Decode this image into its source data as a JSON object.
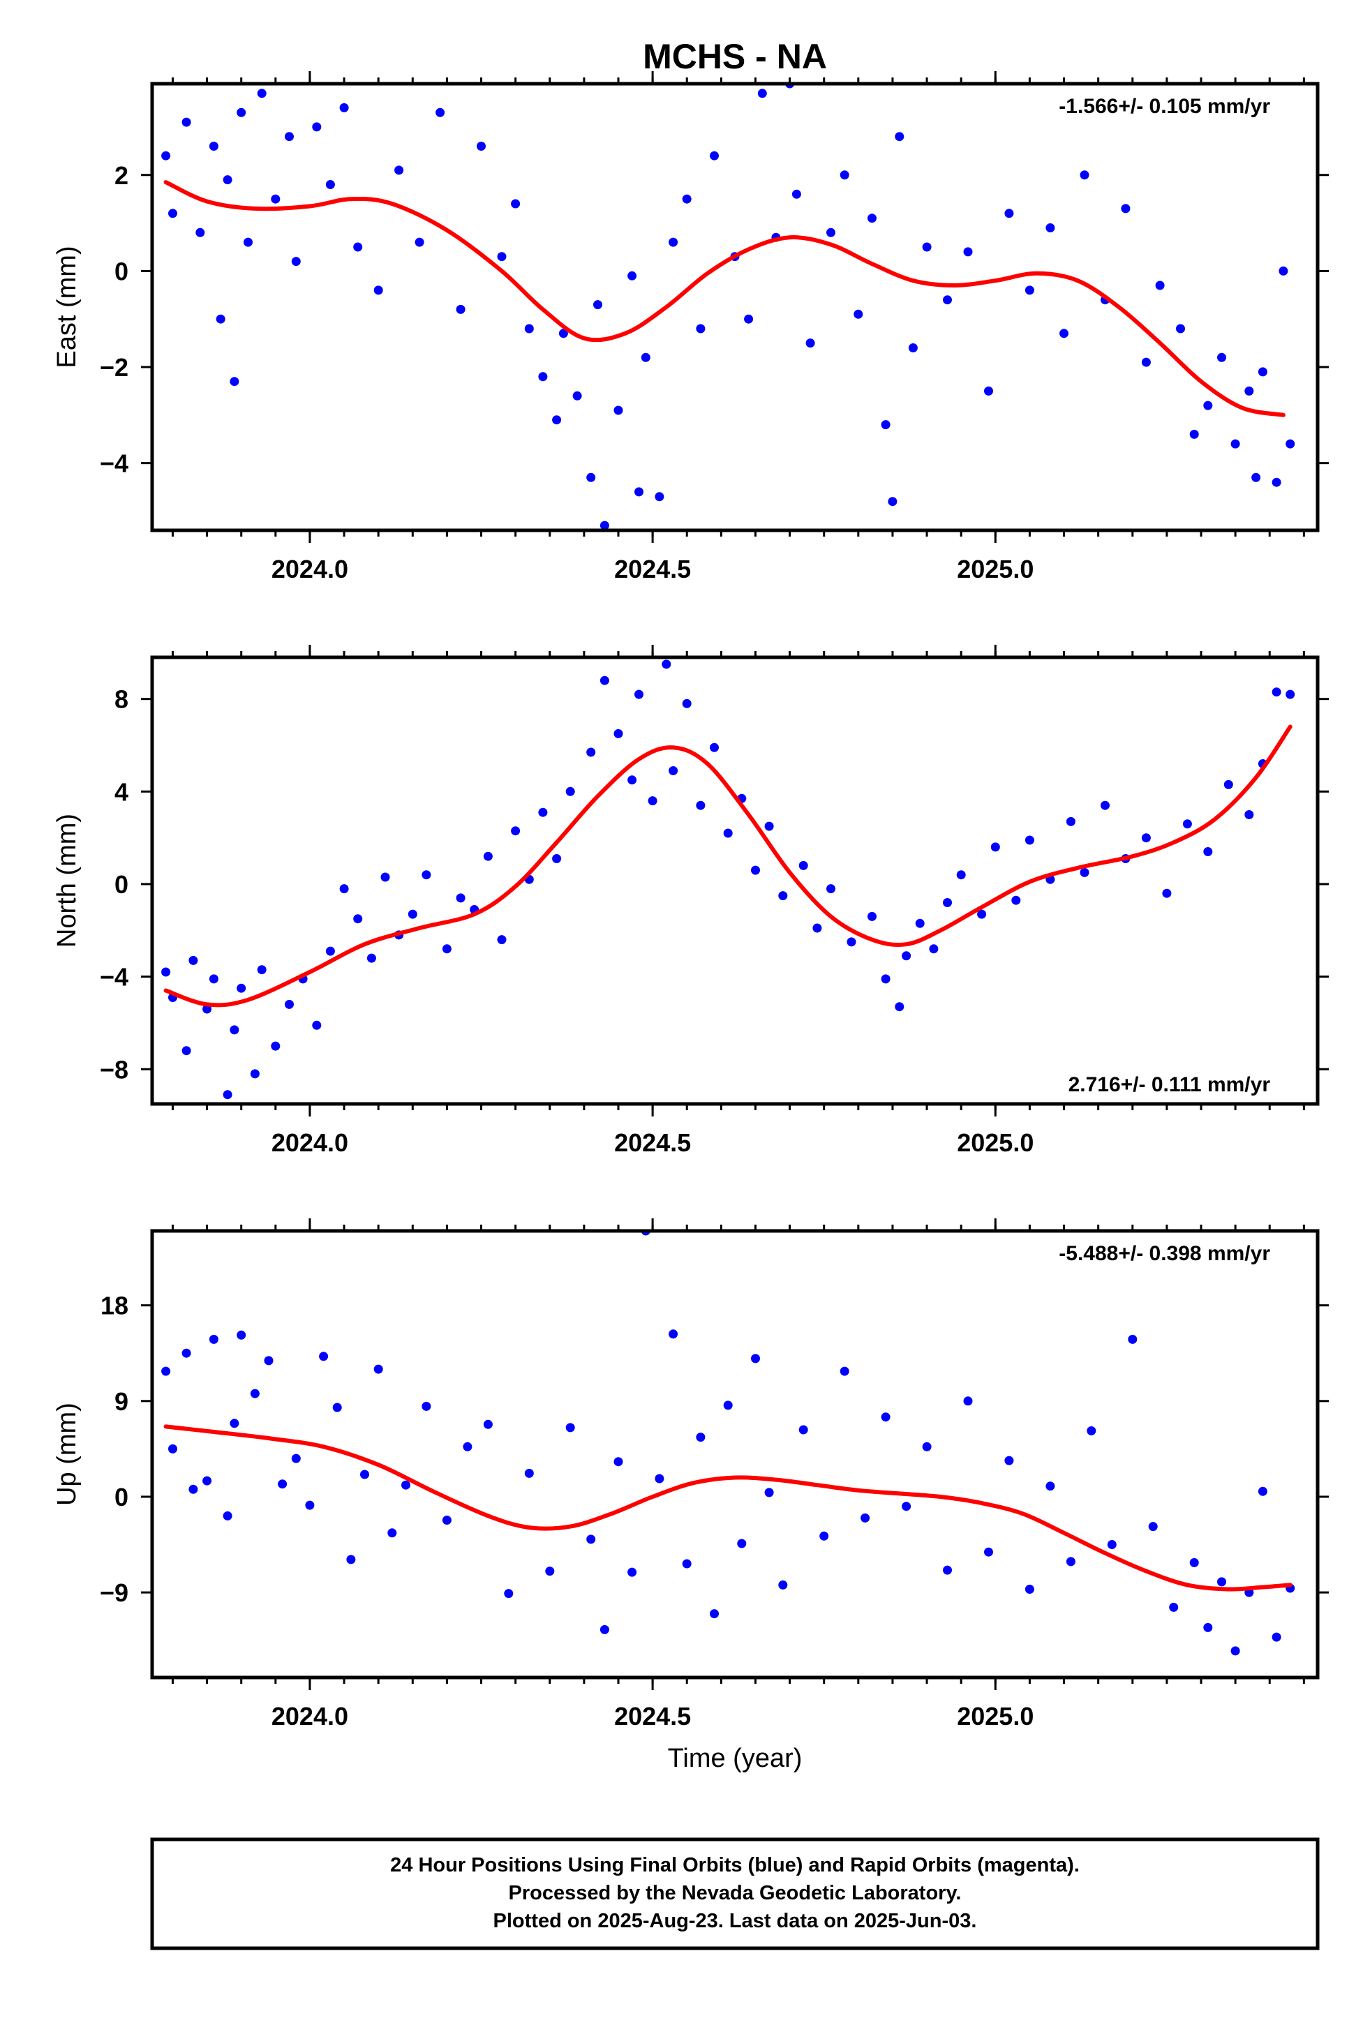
{
  "title": "MCHS - NA",
  "x_axis_label": "Time (year)",
  "footer": {
    "line1": "24 Hour Positions Using Final Orbits (blue) and Rapid Orbits (magenta).",
    "line2": "Processed by the Nevada Geodetic Laboratory.",
    "line3": "Plotted on 2025-Aug-23. Last data on 2025-Jun-03."
  },
  "colors": {
    "points": "#0000ff",
    "fit": "#ff0000",
    "frame": "#000000"
  },
  "chart_data": [
    {
      "type": "scatter",
      "ylabel": "East (mm)",
      "rate_label": "-1.566+/- 0.105 mm/yr",
      "rate_position": "top-right",
      "xlim": [
        2023.77,
        2025.47
      ],
      "ylim": [
        -5.4,
        3.9
      ],
      "xticks": [
        2024.0,
        2024.5,
        2025.0
      ],
      "xtick_labels": [
        "2024.0",
        "2024.5",
        "2025.0"
      ],
      "yticks": [
        -4,
        -2,
        0,
        2
      ],
      "ytick_labels": [
        "−4",
        "−2",
        "0",
        "2"
      ],
      "fit_curve": {
        "x": [
          2023.79,
          2023.85,
          2023.92,
          2024.0,
          2024.06,
          2024.12,
          2024.2,
          2024.28,
          2024.34,
          2024.4,
          2024.46,
          2024.52,
          2024.58,
          2024.64,
          2024.7,
          2024.76,
          2024.82,
          2024.88,
          2024.94,
          2025.0,
          2025.06,
          2025.12,
          2025.18,
          2025.24,
          2025.3,
          2025.36,
          2025.42
        ],
        "y": [
          1.85,
          1.45,
          1.3,
          1.35,
          1.5,
          1.4,
          0.85,
          0.0,
          -0.8,
          -1.4,
          -1.3,
          -0.75,
          -0.05,
          0.45,
          0.7,
          0.55,
          0.15,
          -0.2,
          -0.3,
          -0.2,
          -0.05,
          -0.2,
          -0.75,
          -1.5,
          -2.3,
          -2.85,
          -3.0
        ]
      },
      "points": {
        "x": [
          2023.79,
          2023.8,
          2023.82,
          2023.84,
          2023.86,
          2023.87,
          2023.88,
          2023.89,
          2023.9,
          2023.91,
          2023.93,
          2023.95,
          2023.97,
          2023.98,
          2024.01,
          2024.03,
          2024.05,
          2024.07,
          2024.1,
          2024.13,
          2024.16,
          2024.19,
          2024.22,
          2024.25,
          2024.28,
          2024.3,
          2024.32,
          2024.34,
          2024.36,
          2024.37,
          2024.39,
          2024.41,
          2024.42,
          2024.43,
          2024.45,
          2024.47,
          2024.48,
          2024.49,
          2024.51,
          2024.53,
          2024.55,
          2024.57,
          2024.59,
          2024.62,
          2024.64,
          2024.66,
          2024.68,
          2024.7,
          2024.71,
          2024.73,
          2024.76,
          2024.78,
          2024.8,
          2024.82,
          2024.84,
          2024.85,
          2024.86,
          2024.88,
          2024.9,
          2024.93,
          2024.96,
          2024.99,
          2025.02,
          2025.05,
          2025.08,
          2025.1,
          2025.13,
          2025.16,
          2025.19,
          2025.22,
          2025.24,
          2025.27,
          2025.29,
          2025.31,
          2025.33,
          2025.35,
          2025.37,
          2025.38,
          2025.39,
          2025.41,
          2025.42,
          2025.43
        ],
        "y": [
          2.4,
          1.2,
          3.1,
          0.8,
          2.6,
          -1.0,
          1.9,
          -2.3,
          3.3,
          0.6,
          3.7,
          1.5,
          2.8,
          0.2,
          3.0,
          1.8,
          3.4,
          0.5,
          -0.4,
          2.1,
          0.6,
          3.3,
          -0.8,
          2.6,
          0.3,
          1.4,
          -1.2,
          -2.2,
          -3.1,
          -1.3,
          -2.6,
          -4.3,
          -0.7,
          -5.3,
          -2.9,
          -0.1,
          -4.6,
          -1.8,
          -4.7,
          0.6,
          1.5,
          -1.2,
          2.4,
          0.3,
          -1.0,
          3.7,
          0.7,
          3.9,
          1.6,
          -1.5,
          0.8,
          2.0,
          -0.9,
          1.1,
          -3.2,
          -4.8,
          2.8,
          -1.6,
          0.5,
          -0.6,
          0.4,
          -2.5,
          1.2,
          -0.4,
          0.9,
          -1.3,
          2.0,
          -0.6,
          1.3,
          -1.9,
          -0.3,
          -1.2,
          -3.4,
          -2.8,
          -1.8,
          -3.6,
          -2.5,
          -4.3,
          -2.1,
          -4.4,
          0.0,
          -3.6
        ]
      }
    },
    {
      "type": "scatter",
      "ylabel": "North (mm)",
      "rate_label": "2.716+/- 0.111 mm/yr",
      "rate_position": "bottom-right",
      "xlim": [
        2023.77,
        2025.47
      ],
      "ylim": [
        -9.5,
        9.8
      ],
      "xticks": [
        2024.0,
        2024.5,
        2025.0
      ],
      "xtick_labels": [
        "2024.0",
        "2024.5",
        "2025.0"
      ],
      "yticks": [
        -8,
        -4,
        0,
        4,
        8
      ],
      "ytick_labels": [
        "−8",
        "−4",
        "0",
        "4",
        "8"
      ],
      "fit_curve": {
        "x": [
          2023.79,
          2023.85,
          2023.91,
          2024.0,
          2024.08,
          2024.16,
          2024.24,
          2024.3,
          2024.36,
          2024.42,
          2024.48,
          2024.53,
          2024.58,
          2024.64,
          2024.7,
          2024.76,
          2024.82,
          2024.87,
          2024.92,
          2024.98,
          2025.05,
          2025.12,
          2025.2,
          2025.26,
          2025.32,
          2025.38,
          2025.43
        ],
        "y": [
          -4.6,
          -5.2,
          -5.0,
          -3.8,
          -2.6,
          -1.9,
          -1.3,
          -0.1,
          1.8,
          3.8,
          5.4,
          5.9,
          5.2,
          3.0,
          0.5,
          -1.4,
          -2.4,
          -2.6,
          -2.0,
          -1.0,
          0.1,
          0.7,
          1.2,
          1.8,
          2.8,
          4.6,
          6.8
        ]
      },
      "points": {
        "x": [
          2023.79,
          2023.8,
          2023.82,
          2023.83,
          2023.85,
          2023.86,
          2023.88,
          2023.89,
          2023.9,
          2023.92,
          2023.93,
          2023.95,
          2023.97,
          2023.99,
          2024.01,
          2024.03,
          2024.05,
          2024.07,
          2024.09,
          2024.11,
          2024.13,
          2024.15,
          2024.17,
          2024.2,
          2024.22,
          2024.24,
          2024.26,
          2024.28,
          2024.3,
          2024.32,
          2024.34,
          2024.36,
          2024.38,
          2024.41,
          2024.43,
          2024.45,
          2024.47,
          2024.48,
          2024.5,
          2024.52,
          2024.53,
          2024.55,
          2024.57,
          2024.59,
          2024.61,
          2024.63,
          2024.65,
          2024.67,
          2024.69,
          2024.72,
          2024.74,
          2024.76,
          2024.79,
          2024.82,
          2024.84,
          2024.86,
          2024.87,
          2024.89,
          2024.91,
          2024.93,
          2024.95,
          2024.98,
          2025.0,
          2025.03,
          2025.05,
          2025.08,
          2025.11,
          2025.13,
          2025.16,
          2025.19,
          2025.22,
          2025.25,
          2025.28,
          2025.31,
          2025.34,
          2025.37,
          2025.39,
          2025.41,
          2025.43
        ],
        "y": [
          -3.8,
          -4.9,
          -7.2,
          -3.3,
          -5.4,
          -4.1,
          -9.1,
          -6.3,
          -4.5,
          -8.2,
          -3.7,
          -7.0,
          -5.2,
          -4.1,
          -6.1,
          -2.9,
          -0.2,
          -1.5,
          -3.2,
          0.3,
          -2.2,
          -1.3,
          0.4,
          -2.8,
          -0.6,
          -1.1,
          1.2,
          -2.4,
          2.3,
          0.2,
          3.1,
          1.1,
          4.0,
          5.7,
          8.8,
          6.5,
          4.5,
          8.2,
          3.6,
          9.5,
          4.9,
          7.8,
          3.4,
          5.9,
          2.2,
          3.7,
          0.6,
          2.5,
          -0.5,
          0.8,
          -1.9,
          -0.2,
          -2.5,
          -1.4,
          -4.1,
          -5.3,
          -3.1,
          -1.7,
          -2.8,
          -0.8,
          0.4,
          -1.3,
          1.6,
          -0.7,
          1.9,
          0.2,
          2.7,
          0.5,
          3.4,
          1.1,
          2.0,
          -0.4,
          2.6,
          1.4,
          4.3,
          3.0,
          5.2,
          8.3,
          8.2
        ]
      }
    },
    {
      "type": "scatter",
      "ylabel": "Up (mm)",
      "rate_label": "-5.488+/- 0.398 mm/yr",
      "rate_position": "top-right",
      "xlim": [
        2023.77,
        2025.47
      ],
      "ylim": [
        -17.0,
        25.0
      ],
      "xticks": [
        2024.0,
        2024.5,
        2025.0
      ],
      "xtick_labels": [
        "2024.0",
        "2024.5",
        "2025.0"
      ],
      "yticks": [
        -9,
        0,
        9,
        18
      ],
      "ytick_labels": [
        "−9",
        "0",
        "9",
        "18"
      ],
      "fit_curve": {
        "x": [
          2023.79,
          2023.86,
          2023.94,
          2024.02,
          2024.1,
          2024.18,
          2024.26,
          2024.32,
          2024.38,
          2024.44,
          2024.5,
          2024.56,
          2024.62,
          2024.68,
          2024.74,
          2024.8,
          2024.86,
          2024.92,
          2024.98,
          2025.04,
          2025.1,
          2025.16,
          2025.22,
          2025.28,
          2025.34,
          2025.39,
          2025.43
        ],
        "y": [
          6.6,
          6.1,
          5.5,
          4.7,
          3.0,
          0.5,
          -1.8,
          -2.9,
          -2.8,
          -1.6,
          0.0,
          1.3,
          1.8,
          1.6,
          1.1,
          0.6,
          0.3,
          0.0,
          -0.6,
          -1.6,
          -3.4,
          -5.3,
          -7.0,
          -8.3,
          -8.7,
          -8.5,
          -8.3
        ]
      },
      "points": {
        "x": [
          2023.79,
          2023.8,
          2023.82,
          2023.83,
          2023.85,
          2023.86,
          2023.88,
          2023.89,
          2023.9,
          2023.92,
          2023.94,
          2023.96,
          2023.98,
          2024.0,
          2024.02,
          2024.04,
          2024.06,
          2024.08,
          2024.1,
          2024.12,
          2024.14,
          2024.17,
          2024.2,
          2024.23,
          2024.26,
          2024.29,
          2024.32,
          2024.35,
          2024.38,
          2024.41,
          2024.43,
          2024.45,
          2024.47,
          2024.49,
          2024.51,
          2024.53,
          2024.55,
          2024.57,
          2024.59,
          2024.61,
          2024.63,
          2024.65,
          2024.67,
          2024.69,
          2024.72,
          2024.75,
          2024.78,
          2024.81,
          2024.84,
          2024.87,
          2024.9,
          2024.93,
          2024.96,
          2024.99,
          2025.02,
          2025.05,
          2025.08,
          2025.11,
          2025.14,
          2025.17,
          2025.2,
          2025.23,
          2025.26,
          2025.29,
          2025.31,
          2025.33,
          2025.35,
          2025.37,
          2025.39,
          2025.41,
          2025.43
        ],
        "y": [
          11.8,
          4.5,
          13.5,
          0.7,
          1.5,
          14.8,
          -1.8,
          6.9,
          15.2,
          9.7,
          12.8,
          1.2,
          3.6,
          -0.8,
          13.2,
          8.4,
          -5.9,
          2.1,
          12.0,
          -3.4,
          1.1,
          8.5,
          -2.2,
          4.7,
          6.8,
          -9.1,
          2.2,
          -7.0,
          6.5,
          -4.0,
          -12.5,
          3.3,
          -7.1,
          25.0,
          1.7,
          15.3,
          -6.3,
          5.6,
          -11.0,
          8.6,
          -4.4,
          13.0,
          0.4,
          -8.3,
          6.3,
          -3.7,
          11.8,
          -2.0,
          7.5,
          -0.9,
          4.7,
          -6.9,
          9.0,
          -5.2,
          3.4,
          -8.7,
          1.0,
          -6.1,
          6.2,
          -4.5,
          14.8,
          -2.8,
          -10.4,
          -6.2,
          -12.3,
          -8.0,
          -14.5,
          -9.0,
          0.5,
          -13.2,
          -8.6
        ]
      }
    }
  ]
}
